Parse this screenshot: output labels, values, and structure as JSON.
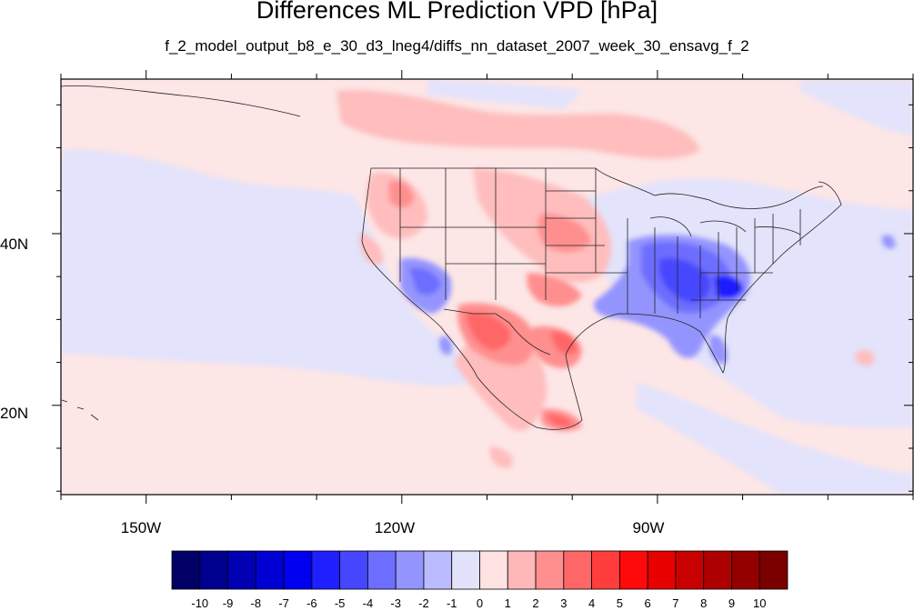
{
  "title": "Differences ML Prediction VPD [hPa]",
  "subtitle": "f_2_model_output_b8_e_30_d3_lneg4/diffs_nn_dataset_2007_week_30_ensavg_f_2",
  "map": {
    "background_color": "#fde6e6",
    "lon_range": [
      -160,
      -60
    ],
    "lat_range": [
      10,
      58
    ],
    "lat_labels": [
      "40N",
      "20N"
    ],
    "lon_labels": [
      "150W",
      "120W",
      "90W"
    ]
  },
  "colorbar": {
    "labels": [
      "-10",
      "-9",
      "-8",
      "-7",
      "-6",
      "-5",
      "-4",
      "-3",
      "-2",
      "-1",
      "0",
      "1",
      "2",
      "3",
      "4",
      "5",
      "6",
      "7",
      "8",
      "9",
      "10"
    ],
    "colors": [
      "#000066",
      "#00008e",
      "#0000b2",
      "#0000d5",
      "#0000f0",
      "#1f1fff",
      "#4646ff",
      "#6d6dff",
      "#9494ff",
      "#bbbbff",
      "#e2e2fb",
      "#ffe2e2",
      "#ffb8b8",
      "#ff8f8f",
      "#ff6666",
      "#ff3d3d",
      "#ff0a0a",
      "#e60000",
      "#c90000",
      "#ad0000",
      "#940000",
      "#7a0000"
    ]
  }
}
